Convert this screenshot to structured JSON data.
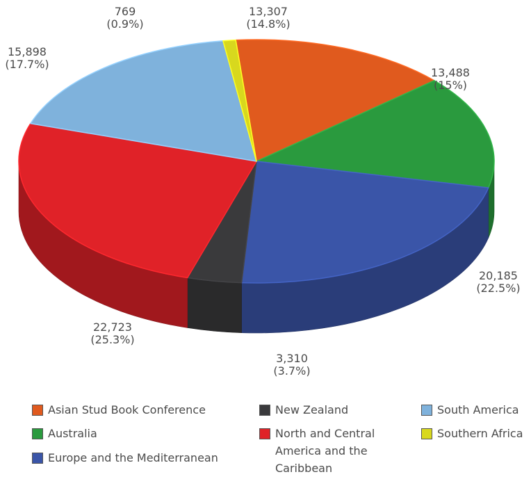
{
  "chart_data": {
    "type": "pie",
    "style": "3d",
    "slices": [
      {
        "name": "Asian Stud Book Conference",
        "value": 13307,
        "value_label": "13,307",
        "pct_label": "(14.8%)",
        "color": "#e05a1e"
      },
      {
        "name": "Australia",
        "value": 13488,
        "value_label": "13,488",
        "pct_label": "(15%)",
        "color": "#2a9a3e"
      },
      {
        "name": "Europe and the Mediterranean",
        "value": 20185,
        "value_label": "20,185",
        "pct_label": "(22.5%)",
        "color": "#3a55a8"
      },
      {
        "name": "New Zealand",
        "value": 3310,
        "value_label": "3,310",
        "pct_label": "(3.7%)",
        "color": "#3a3a3c"
      },
      {
        "name": "North and Central America and the Caribbean",
        "value": 22723,
        "value_label": "22,723",
        "pct_label": "(25.3%)",
        "color": "#e02228"
      },
      {
        "name": "South America",
        "value": 15898,
        "value_label": "15,898",
        "pct_label": "(17.7%)",
        "color": "#7fb2dc"
      },
      {
        "name": "Southern Africa",
        "value": 769,
        "value_label": "769",
        "pct_label": "(0.9%)",
        "color": "#d8d81e"
      }
    ],
    "legend": {
      "position": "bottom",
      "entries": [
        {
          "label": "Asian Stud Book Conference",
          "color": "#e05a1e"
        },
        {
          "label": "New Zealand",
          "color": "#3a3a3c"
        },
        {
          "label": "South America",
          "color": "#7fb2dc"
        },
        {
          "label": "Australia",
          "color": "#2a9a3e"
        },
        {
          "label": "North and Central America and the Caribbean",
          "color": "#e02228"
        },
        {
          "label": "Southern Africa",
          "color": "#d8d81e"
        },
        {
          "label": "Europe and the Mediterranean",
          "color": "#3a55a8"
        }
      ]
    }
  }
}
